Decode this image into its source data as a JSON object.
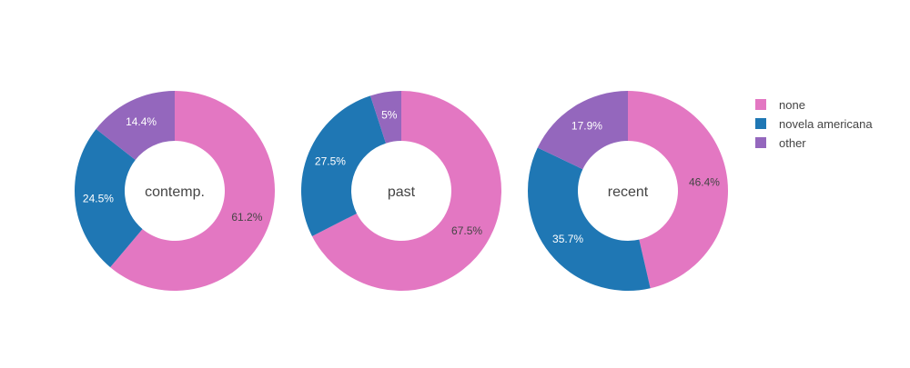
{
  "chart_data": {
    "type": "pie",
    "hole": true,
    "legend_position": "right",
    "legend": [
      {
        "label": "none",
        "color": "#e377c2"
      },
      {
        "label": "novela americana",
        "color": "#1f77b4"
      },
      {
        "label": "other",
        "color": "#9467bd"
      }
    ],
    "charts": [
      {
        "center_label": "contemp.",
        "slices": [
          {
            "label": "none",
            "value": 61.2,
            "text": "61.2%",
            "color": "#e377c2"
          },
          {
            "label": "novela americana",
            "value": 24.5,
            "text": "24.5%",
            "color": "#1f77b4"
          },
          {
            "label": "other",
            "value": 14.4,
            "text": "14.4%",
            "color": "#9467bd"
          }
        ]
      },
      {
        "center_label": "past",
        "slices": [
          {
            "label": "none",
            "value": 67.5,
            "text": "67.5%",
            "color": "#e377c2"
          },
          {
            "label": "novela americana",
            "value": 27.5,
            "text": "27.5%",
            "color": "#1f77b4"
          },
          {
            "label": "other",
            "value": 5,
            "text": "5%",
            "color": "#9467bd"
          }
        ]
      },
      {
        "center_label": "recent",
        "slices": [
          {
            "label": "none",
            "value": 46.4,
            "text": "46.4%",
            "color": "#e377c2"
          },
          {
            "label": "novela americana",
            "value": 35.7,
            "text": "35.7%",
            "color": "#1f77b4"
          },
          {
            "label": "other",
            "value": 17.9,
            "text": "17.9%",
            "color": "#9467bd"
          }
        ]
      }
    ]
  }
}
